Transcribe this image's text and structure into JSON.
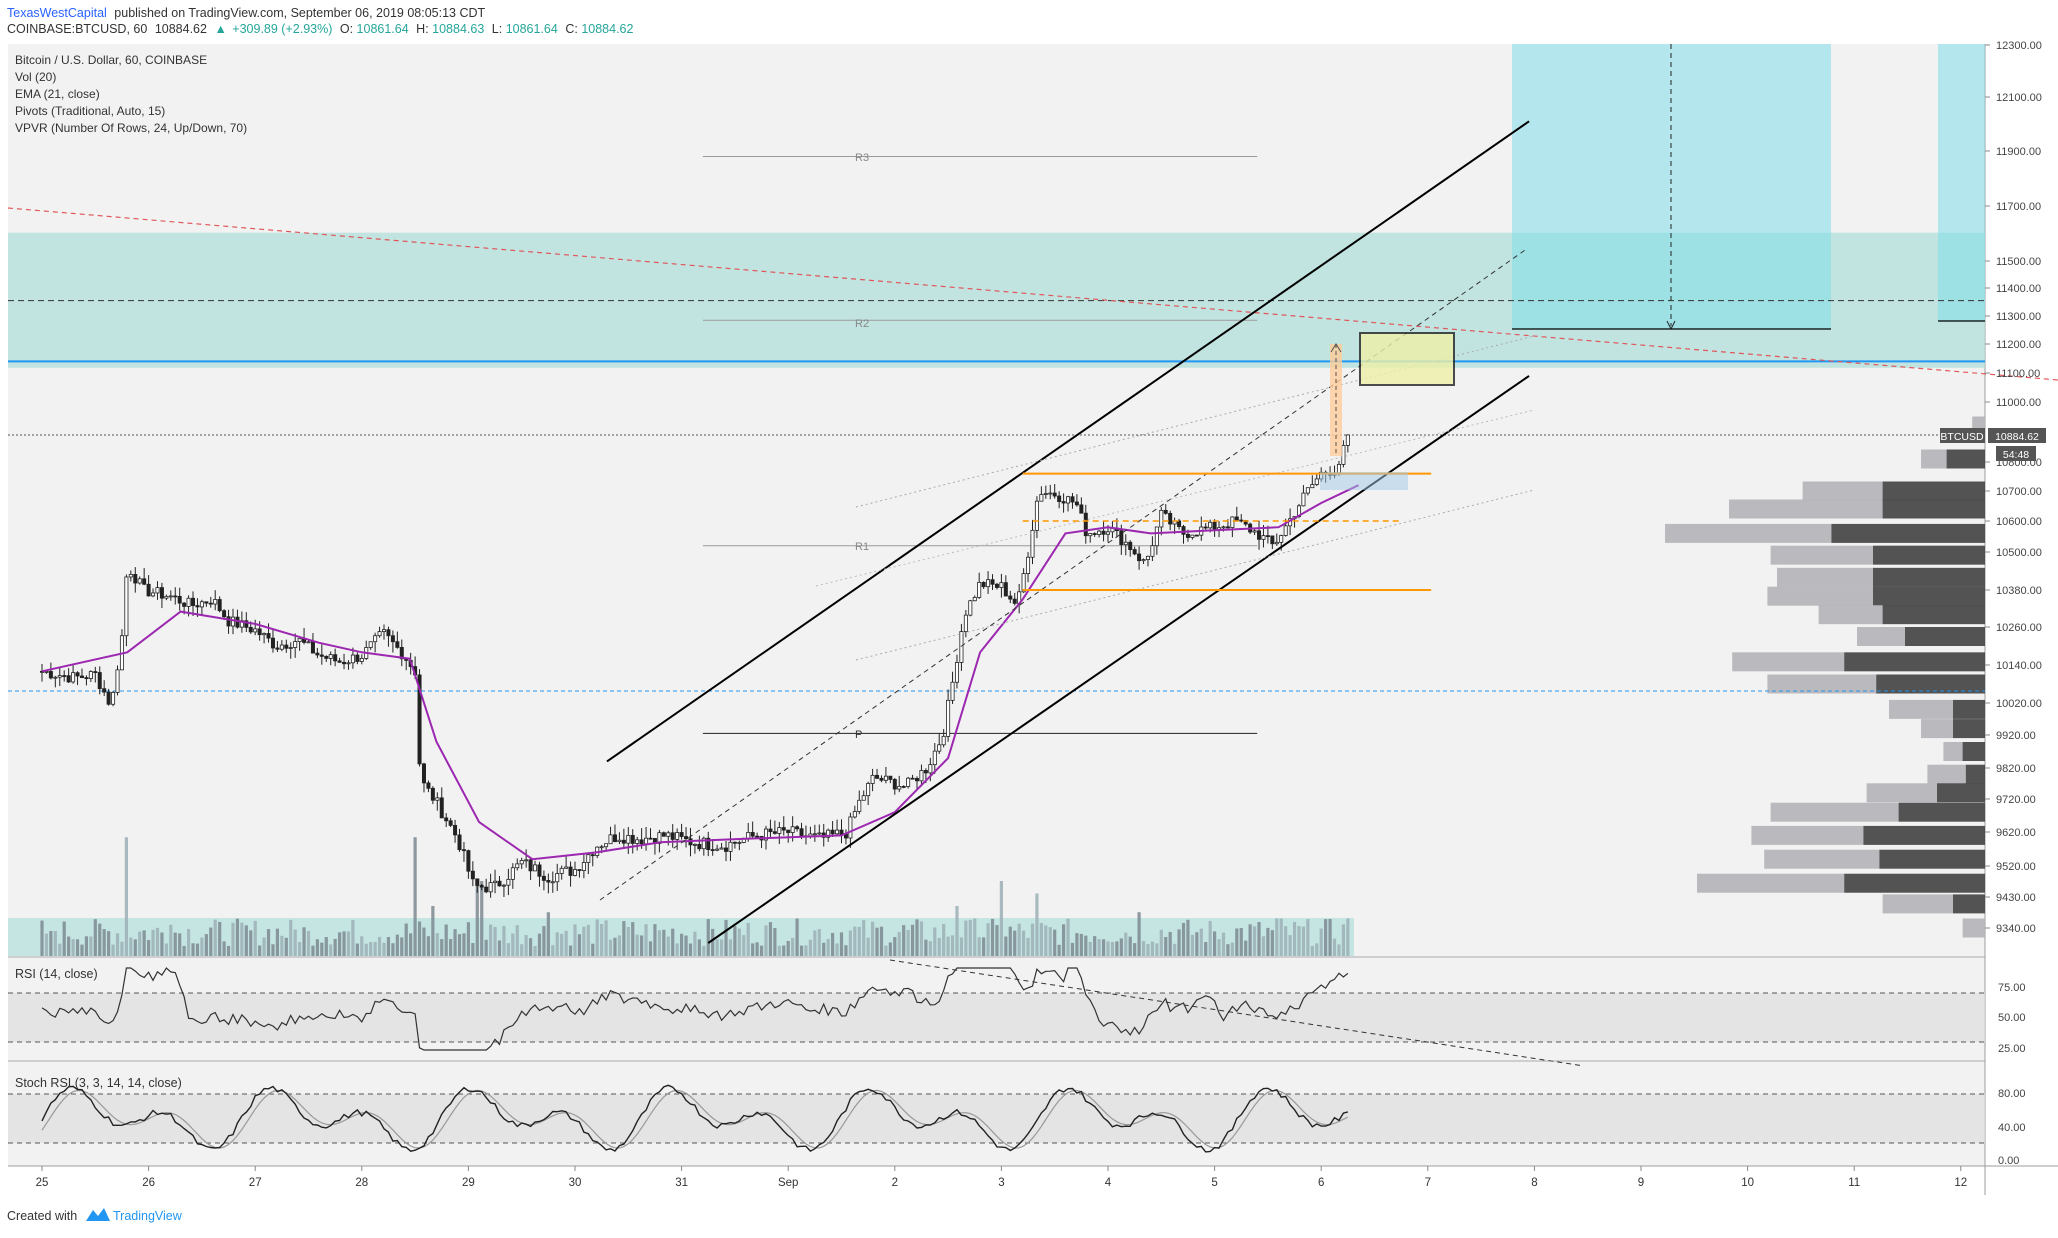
{
  "header": {
    "author": "TexasWestCapital",
    "published_text": "published on TradingView.com, September 06, 2019 08:05:13 CDT",
    "symbol_line_prefix": "COINBASE:BTCUSD, 60",
    "last": "10884.62",
    "change": "+309.89 (+2.93%)",
    "open_label": "O:",
    "open": "10861.64",
    "high_label": "H:",
    "high": "10884.63",
    "low_label": "L:",
    "low": "10861.64",
    "close_label": "C:",
    "close": "10884.62",
    "up_arrow": "▲"
  },
  "legend": {
    "title": "Bitcoin / U.S. Dollar, 60, COINBASE",
    "studies": [
      "Vol (20)",
      "EMA (21, close)",
      "Pivots (Traditional, Auto, 15)",
      "VPVR (Number Of Rows, 24, Up/Down, 70)"
    ]
  },
  "pivots": {
    "r3": "R3",
    "r2": "R2",
    "r1": "R1",
    "p": "P"
  },
  "price_tag": {
    "symbol": "BTCUSD",
    "price": "10884.62",
    "countdown": "54:48"
  },
  "rsi_panel": {
    "title": "RSI (14, close)",
    "ticks": [
      "75.00",
      "50.00",
      "25.00"
    ]
  },
  "stoch_panel": {
    "title": "Stoch RSI (3, 3, 14, 14, close)",
    "ticks": [
      "80.00",
      "40.00",
      "0.00"
    ]
  },
  "footer": {
    "created_with": "Created with",
    "brand": "TradingView"
  },
  "colors": {
    "channel": "#000000",
    "ema": "#9c27b0",
    "orange": "#ff9800",
    "blue_line": "#2196f3",
    "zone_teal": "#b2dfdb",
    "target_cyan": "#80deea",
    "up_green": "#26a69a",
    "resistance_red": "#e0575b"
  },
  "chart_data": {
    "type": "candlestick",
    "symbol": "COINBASE:BTCUSD",
    "interval": "60",
    "ylim": [
      9280,
      12300
    ],
    "y_ticks": [
      12300,
      12100,
      11900,
      11700,
      11500,
      11400,
      11300,
      11200,
      11100,
      11000,
      10800,
      10700,
      10600,
      10500,
      10380,
      10260,
      10140,
      10020,
      9920,
      9820,
      9720,
      9620,
      9520,
      9430,
      9340
    ],
    "y_tick_labels": [
      "12300.00",
      "12100.00",
      "11900.00",
      "11700.00",
      "11500.00",
      "11400.00",
      "11300.00",
      "11200.00",
      "11100.00",
      "11000.00",
      "10800.00",
      "10700.00",
      "10600.00",
      "10500.00",
      "10380.00",
      "10260.00",
      "10140.00",
      "10020.00",
      "9920.00",
      "9820.00",
      "9720.00",
      "9620.00",
      "9520.00",
      "9430.00",
      "9340.00"
    ],
    "x_ticks": [
      "25",
      "26",
      "27",
      "28",
      "29",
      "30",
      "31",
      "Sep",
      "2",
      "3",
      "4",
      "5",
      "6",
      "7",
      "8",
      "9",
      "10",
      "11",
      "12"
    ],
    "price_path": [
      [
        0,
        10120
      ],
      [
        0.3,
        10100
      ],
      [
        0.5,
        10110
      ],
      [
        0.65,
        10010
      ],
      [
        0.75,
        10230
      ],
      [
        0.8,
        10460
      ],
      [
        0.95,
        10380
      ],
      [
        1.2,
        10360
      ],
      [
        1.4,
        10330
      ],
      [
        1.6,
        10350
      ],
      [
        1.75,
        10280
      ],
      [
        2.0,
        10250
      ],
      [
        2.2,
        10200
      ],
      [
        2.4,
        10220
      ],
      [
        2.6,
        10170
      ],
      [
        2.8,
        10150
      ],
      [
        3.0,
        10170
      ],
      [
        3.2,
        10240
      ],
      [
        3.4,
        10170
      ],
      [
        3.5,
        10120
      ],
      [
        3.55,
        9780
      ],
      [
        3.7,
        9710
      ],
      [
        3.9,
        9600
      ],
      [
        4.05,
        9460
      ],
      [
        4.25,
        9460
      ],
      [
        4.5,
        9530
      ],
      [
        4.75,
        9490
      ],
      [
        5.0,
        9510
      ],
      [
        5.2,
        9580
      ],
      [
        5.4,
        9610
      ],
      [
        5.6,
        9600
      ],
      [
        5.85,
        9610
      ],
      [
        6.1,
        9590
      ],
      [
        6.4,
        9580
      ],
      [
        6.7,
        9610
      ],
      [
        7.0,
        9620
      ],
      [
        7.3,
        9600
      ],
      [
        7.55,
        9620
      ],
      [
        7.65,
        9700
      ],
      [
        7.8,
        9790
      ],
      [
        8.1,
        9760
      ],
      [
        8.3,
        9820
      ],
      [
        8.45,
        9920
      ],
      [
        8.55,
        10100
      ],
      [
        8.65,
        10300
      ],
      [
        8.8,
        10400
      ],
      [
        9.0,
        10390
      ],
      [
        9.15,
        10330
      ],
      [
        9.25,
        10500
      ],
      [
        9.35,
        10700
      ],
      [
        9.5,
        10690
      ],
      [
        9.7,
        10660
      ],
      [
        9.8,
        10560
      ],
      [
        10.0,
        10580
      ],
      [
        10.2,
        10520
      ],
      [
        10.35,
        10460
      ],
      [
        10.5,
        10620
      ],
      [
        10.7,
        10560
      ],
      [
        11.0,
        10580
      ],
      [
        11.2,
        10600
      ],
      [
        11.4,
        10560
      ],
      [
        11.55,
        10520
      ],
      [
        11.7,
        10600
      ],
      [
        11.85,
        10690
      ],
      [
        12.0,
        10760
      ],
      [
        12.15,
        10780
      ],
      [
        12.25,
        10880
      ]
    ],
    "ema21": [
      [
        0,
        10120
      ],
      [
        0.8,
        10180
      ],
      [
        1.3,
        10310
      ],
      [
        2.0,
        10270
      ],
      [
        2.6,
        10210
      ],
      [
        3.0,
        10180
      ],
      [
        3.45,
        10160
      ],
      [
        3.7,
        9900
      ],
      [
        4.1,
        9650
      ],
      [
        4.6,
        9540
      ],
      [
        5.2,
        9560
      ],
      [
        5.8,
        9590
      ],
      [
        6.6,
        9600
      ],
      [
        7.5,
        9610
      ],
      [
        8.0,
        9680
      ],
      [
        8.5,
        9850
      ],
      [
        8.8,
        10180
      ],
      [
        9.2,
        10350
      ],
      [
        9.6,
        10560
      ],
      [
        10.0,
        10580
      ],
      [
        10.4,
        10560
      ],
      [
        11.0,
        10570
      ],
      [
        11.6,
        10580
      ],
      [
        12.0,
        10660
      ],
      [
        12.35,
        10720
      ]
    ],
    "volume_relative": [
      [
        0.1,
        0.2
      ],
      [
        0.8,
        0.95
      ],
      [
        1.2,
        0.25
      ],
      [
        2.5,
        0.2
      ],
      [
        3.5,
        0.95
      ],
      [
        3.65,
        0.4
      ],
      [
        4.1,
        0.6
      ],
      [
        4.75,
        0.35
      ],
      [
        8.6,
        0.4
      ],
      [
        8.75,
        0.3
      ],
      [
        9.0,
        0.6
      ],
      [
        9.35,
        0.5
      ],
      [
        10.3,
        0.35
      ],
      [
        11.6,
        0.3
      ],
      [
        12.25,
        0.3
      ]
    ],
    "levels": [
      {
        "name": "R3",
        "price": 11880,
        "from_day": 7.8,
        "to_day": 14.35
      },
      {
        "name": "R2",
        "price": 11285,
        "from_day": 7.8,
        "to_day": 14.35
      },
      {
        "name": "R1",
        "price": 10520,
        "from_day": 7.8,
        "to_day": 14.35
      },
      {
        "name": "P",
        "price": 9925,
        "from_day": 7.8,
        "to_day": 14.35
      }
    ],
    "supply_zone": [
      11118,
      11603
    ],
    "blue_resistance": 11140,
    "dashed_level": 11355,
    "range_box": {
      "high": 10760,
      "mid": 10600,
      "low": 10380,
      "from_day": 9.2,
      "to_day": 12.75
    },
    "channel": {
      "upper": [
        [
          5.3,
          9840
        ],
        [
          13.95,
          12010
        ]
      ],
      "lower": [
        [
          6.25,
          9295
        ],
        [
          13.95,
          11090
        ]
      ]
    },
    "rsi_levels": [
      70,
      30
    ],
    "stoch_levels": [
      80,
      20
    ],
    "vpvr_rows": [
      {
        "price": 10920,
        "total": 0.04,
        "down": 0.0
      },
      {
        "price": 10810,
        "total": 0.2,
        "down": 0.12
      },
      {
        "price": 10700,
        "total": 0.57,
        "down": 0.32
      },
      {
        "price": 10640,
        "total": 0.8,
        "down": 0.32
      },
      {
        "price": 10560,
        "total": 1.0,
        "down": 0.48
      },
      {
        "price": 10490,
        "total": 0.67,
        "down": 0.35
      },
      {
        "price": 10420,
        "total": 0.65,
        "down": 0.35
      },
      {
        "price": 10360,
        "total": 0.68,
        "down": 0.35
      },
      {
        "price": 10300,
        "total": 0.52,
        "down": 0.32
      },
      {
        "price": 10230,
        "total": 0.4,
        "down": 0.25
      },
      {
        "price": 10150,
        "total": 0.79,
        "down": 0.44
      },
      {
        "price": 10080,
        "total": 0.68,
        "down": 0.34
      },
      {
        "price": 10000,
        "total": 0.3,
        "down": 0.1
      },
      {
        "price": 9940,
        "total": 0.2,
        "down": 0.1
      },
      {
        "price": 9870,
        "total": 0.13,
        "down": 0.07
      },
      {
        "price": 9800,
        "total": 0.18,
        "down": 0.06
      },
      {
        "price": 9740,
        "total": 0.37,
        "down": 0.15
      },
      {
        "price": 9680,
        "total": 0.67,
        "down": 0.27
      },
      {
        "price": 9610,
        "total": 0.73,
        "down": 0.38
      },
      {
        "price": 9540,
        "total": 0.69,
        "down": 0.33
      },
      {
        "price": 9470,
        "total": 0.9,
        "down": 0.44
      },
      {
        "price": 9410,
        "total": 0.32,
        "down": 0.1
      },
      {
        "price": 9340,
        "total": 0.07,
        "down": 0.0
      }
    ]
  }
}
